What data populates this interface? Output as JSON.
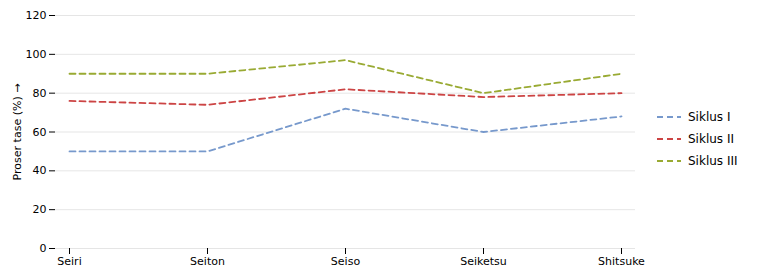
{
  "chart_data": {
    "type": "line",
    "y_label": "Proser tase (%)",
    "categories": [
      "Seiri",
      "Seiton",
      "Seiso",
      "Seiketsu",
      "Shitsuke"
    ],
    "series": [
      {
        "name": "Siklus I",
        "color": "#7799cc",
        "line_style": "dashed",
        "values": [
          50,
          50,
          72,
          60,
          68
        ]
      },
      {
        "name": "Siklus II",
        "color": "#cc4444",
        "line_style": "dashed",
        "values": [
          76,
          74,
          82,
          78,
          80
        ]
      },
      {
        "name": "Siklus III",
        "color": "#99aa33",
        "line_style": "dashed",
        "values": [
          90,
          90,
          97,
          80,
          90
        ]
      }
    ],
    "ylim": [
      0,
      120
    ],
    "yticks": [
      0,
      20,
      40,
      60,
      80,
      100,
      120
    ],
    "grid": true,
    "legend": "right"
  }
}
